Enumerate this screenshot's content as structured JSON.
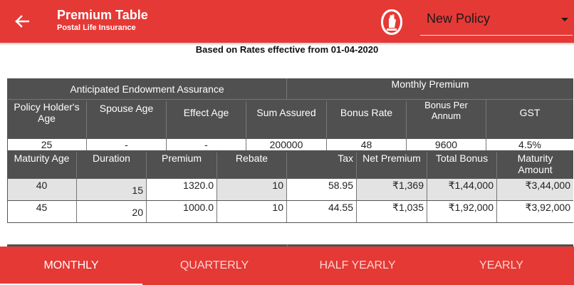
{
  "header": {
    "title": "Premium Table",
    "subtitle": "Postal Life Insurance",
    "policy_selected": "New Policy",
    "accent_color": "#e53935"
  },
  "note": "Based on Rates effective from 01-04-2020",
  "plan": {
    "scheme": "Anticipated Endowment Assurance",
    "frequency_label": "Monthly  Premium",
    "headers": [
      "Policy Holder's Age",
      "Spouse Age",
      "Effect Age",
      "Sum Assured",
      "Bonus Rate",
      "Bonus Per Annum",
      "GST"
    ],
    "values": [
      "25",
      "-",
      "-",
      "200000",
      "48",
      "9600",
      "4.5%"
    ]
  },
  "maturity": {
    "headers": [
      "Maturity Age",
      "Duration",
      "Premium",
      "Rebate",
      "Tax",
      "Net Premium",
      "Total Bonus",
      "Maturity Amount"
    ],
    "rows": [
      [
        "40",
        "15",
        "1320.0",
        "10",
        "58.95",
        "₹1,369",
        "₹1,44,000",
        "₹3,44,000"
      ],
      [
        "45",
        "20",
        "1000.0",
        "10",
        "44.55",
        "₹1,035",
        "₹1,92,000",
        "₹3,92,000"
      ]
    ]
  },
  "tabs": [
    "MONTHLY",
    "QUARTERLY",
    "HALF YEARLY",
    "YEARLY"
  ],
  "active_tab": "MONTHLY"
}
